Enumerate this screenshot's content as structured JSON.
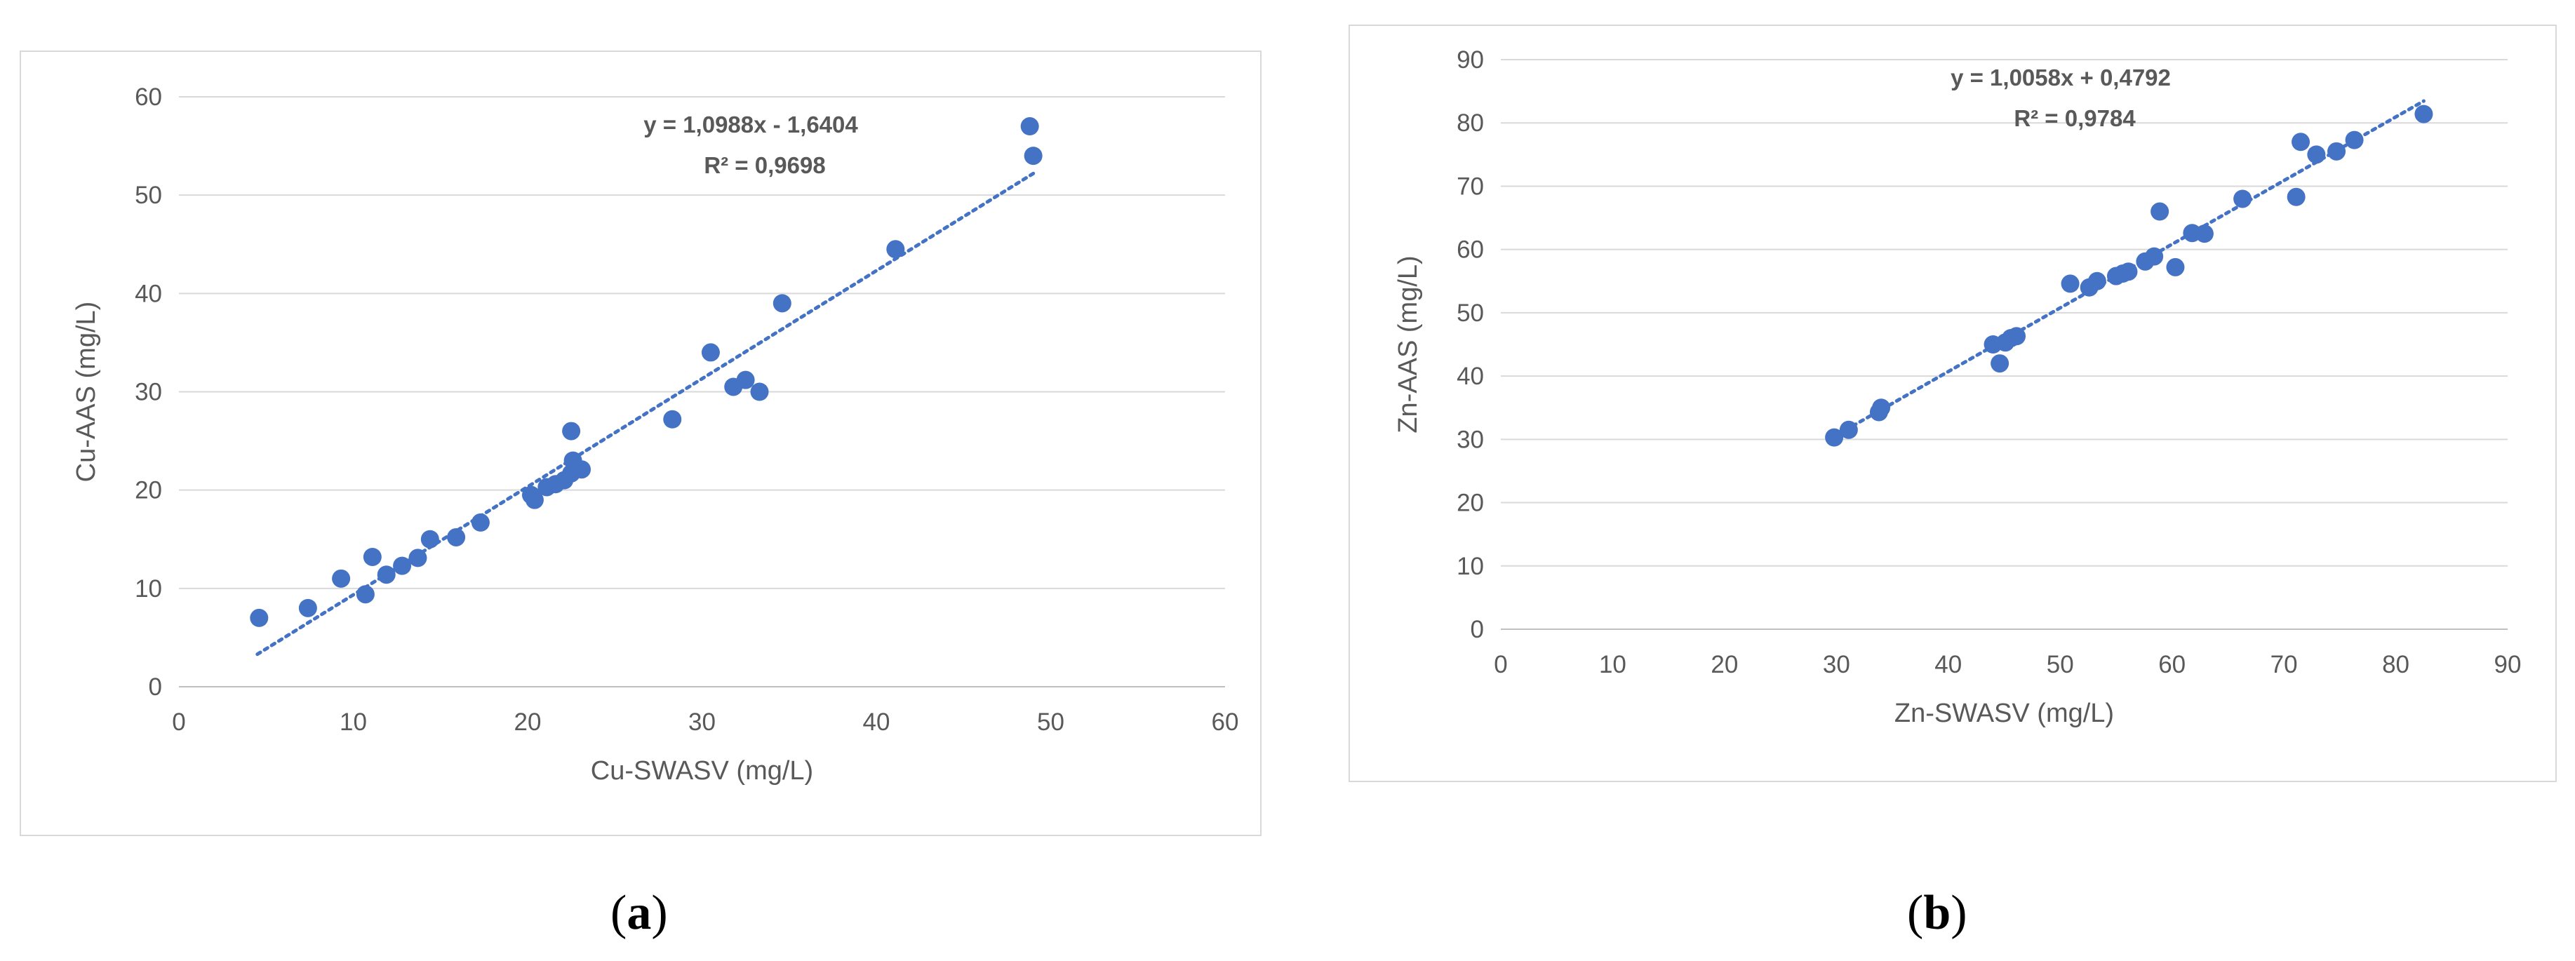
{
  "chart_data": [
    {
      "type": "scatter",
      "panel_label": "a",
      "title": "",
      "xlabel": "Cu-SWASV (mg/L)",
      "ylabel": "Cu-AAS (mg/L)",
      "xlim": [
        0,
        60
      ],
      "ylim": [
        0,
        60
      ],
      "xticks": [
        0,
        10,
        20,
        30,
        40,
        50,
        60
      ],
      "yticks": [
        0,
        10,
        20,
        30,
        40,
        50,
        60
      ],
      "grid": "horizontal",
      "marker_color": "#4472C4",
      "trendline": {
        "type": "linear",
        "slope": 1.0988,
        "intercept": -1.6404,
        "x_range": [
          4.5,
          49
        ],
        "style": "dotted",
        "equation": "y = 1,0988x - 1,6404",
        "r2_text": "R² = 0,9698"
      },
      "points": [
        [
          4.6,
          7.0
        ],
        [
          7.4,
          8.0
        ],
        [
          9.3,
          11.0
        ],
        [
          10.7,
          9.4
        ],
        [
          11.1,
          13.2
        ],
        [
          11.9,
          11.4
        ],
        [
          12.8,
          12.3
        ],
        [
          13.7,
          13.1
        ],
        [
          14.4,
          15.0
        ],
        [
          15.9,
          15.2
        ],
        [
          17.3,
          16.7
        ],
        [
          20.2,
          19.5
        ],
        [
          20.4,
          19.0
        ],
        [
          21.1,
          20.3
        ],
        [
          21.6,
          20.6
        ],
        [
          22.1,
          21.0
        ],
        [
          22.5,
          21.7
        ],
        [
          22.5,
          26.0
        ],
        [
          22.6,
          23.0
        ],
        [
          23.1,
          22.1
        ],
        [
          28.3,
          27.2
        ],
        [
          30.5,
          34.0
        ],
        [
          31.8,
          30.5
        ],
        [
          32.5,
          31.2
        ],
        [
          33.3,
          30.0
        ],
        [
          34.6,
          39.0
        ],
        [
          41.1,
          44.5
        ],
        [
          48.8,
          57.0
        ],
        [
          49.0,
          54.0
        ]
      ]
    },
    {
      "type": "scatter",
      "panel_label": "b",
      "title": "",
      "xlabel": "Zn-SWASV (mg/L)",
      "ylabel": "Zn-AAS (mg/L)",
      "xlim": [
        0,
        90
      ],
      "ylim": [
        0,
        90
      ],
      "xticks": [
        0,
        10,
        20,
        30,
        40,
        50,
        60,
        70,
        80,
        90
      ],
      "yticks": [
        0,
        10,
        20,
        30,
        40,
        50,
        60,
        70,
        80,
        90
      ],
      "grid": "horizontal",
      "marker_color": "#4472C4",
      "trendline": {
        "type": "linear",
        "slope": 1.0058,
        "intercept": 0.4792,
        "x_range": [
          29.5,
          82.5
        ],
        "style": "dotted",
        "equation": "y = 1,0058x + 0,4792",
        "r2_text": "R² = 0,9784"
      },
      "points": [
        [
          29.8,
          30.3
        ],
        [
          31.1,
          31.5
        ],
        [
          33.8,
          34.3
        ],
        [
          34.0,
          35.0
        ],
        [
          44.0,
          45.0
        ],
        [
          44.6,
          42.0
        ],
        [
          45.1,
          45.3
        ],
        [
          45.6,
          46.0
        ],
        [
          46.1,
          46.3
        ],
        [
          50.9,
          54.6
        ],
        [
          52.6,
          54.0
        ],
        [
          53.3,
          55.0
        ],
        [
          55.0,
          55.8
        ],
        [
          55.6,
          56.2
        ],
        [
          56.1,
          56.5
        ],
        [
          57.6,
          58.1
        ],
        [
          58.4,
          58.9
        ],
        [
          58.9,
          66.0
        ],
        [
          60.3,
          57.2
        ],
        [
          61.8,
          62.6
        ],
        [
          62.9,
          62.5
        ],
        [
          66.3,
          68.0
        ],
        [
          71.1,
          68.3
        ],
        [
          71.5,
          77.0
        ],
        [
          72.9,
          75.0
        ],
        [
          74.7,
          75.5
        ],
        [
          76.3,
          77.3
        ],
        [
          82.5,
          81.4
        ]
      ]
    }
  ],
  "captions": {
    "a": "a",
    "b": "b"
  }
}
